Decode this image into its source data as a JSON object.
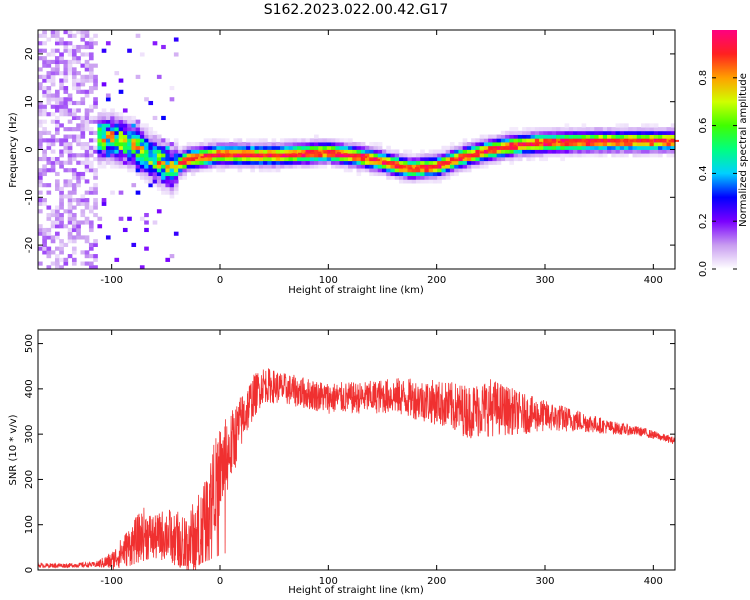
{
  "title": "S162.2023.022.00.42.G17",
  "chart_data": [
    {
      "type": "heatmap",
      "xlabel": "Height of straight line (km)",
      "ylabel": "Frequency (Hz)",
      "xlim": [
        -168,
        420
      ],
      "ylim": [
        -25,
        25
      ],
      "x_ticks": [
        -100,
        0,
        100,
        200,
        300,
        400
      ],
      "y_ticks": [
        -20,
        -10,
        0,
        10,
        20
      ],
      "colorbar": {
        "label": "Normalized spectral amplitude",
        "range": [
          0,
          1
        ],
        "ticks": [
          "0.0",
          "0.2",
          "0.4",
          "0.6",
          "0.8"
        ],
        "colors": [
          "#ffffff",
          "#c89cf0",
          "#7a00ff",
          "#0000ff",
          "#00d0ff",
          "#00ff80",
          "#40ff00",
          "#d0ff00",
          "#ffa000",
          "#ff2020",
          "#ff0080"
        ]
      },
      "ridge": {
        "description": "frequency of the main spectral line vs height",
        "x": [
          -100,
          -80,
          -60,
          -45,
          -30,
          0,
          50,
          100,
          130,
          150,
          175,
          200,
          225,
          250,
          275,
          300,
          350,
          420
        ],
        "y": [
          2.5,
          1,
          -2,
          -4,
          -2,
          -1,
          -1.2,
          -0.5,
          -1.5,
          -2.5,
          -4,
          -3.5,
          -1.5,
          0,
          1,
          1.5,
          1.8,
          1.8
        ]
      }
    },
    {
      "type": "line",
      "xlabel": "Height of straight line (km)",
      "ylabel": "SNR (10 * v/v)",
      "xlim": [
        -168,
        420
      ],
      "ylim": [
        0,
        530
      ],
      "x_ticks": [
        -100,
        0,
        100,
        200,
        300,
        400
      ],
      "y_ticks": [
        0,
        100,
        200,
        300,
        400,
        500
      ],
      "color": "#f03030",
      "series": [
        {
          "x": [
            -168,
            -140,
            -115,
            -100,
            -90,
            -80,
            -70,
            -60,
            -50,
            -40,
            -30,
            -20,
            -10,
            0,
            10,
            20,
            30,
            40,
            60,
            80,
            100,
            130,
            160,
            200,
            230,
            250,
            280,
            300,
            330,
            360,
            390,
            420
          ],
          "y": [
            10,
            10,
            12,
            20,
            40,
            60,
            80,
            70,
            80,
            70,
            60,
            80,
            150,
            220,
            270,
            330,
            380,
            410,
            400,
            390,
            380,
            380,
            385,
            370,
            350,
            360,
            345,
            340,
            330,
            315,
            305,
            285
          ],
          "noise": [
            5,
            5,
            6,
            20,
            35,
            50,
            60,
            50,
            60,
            60,
            70,
            90,
            100,
            100,
            80,
            60,
            50,
            40,
            35,
            35,
            35,
            35,
            40,
            50,
            60,
            65,
            45,
            35,
            25,
            15,
            10,
            8
          ]
        }
      ]
    }
  ]
}
